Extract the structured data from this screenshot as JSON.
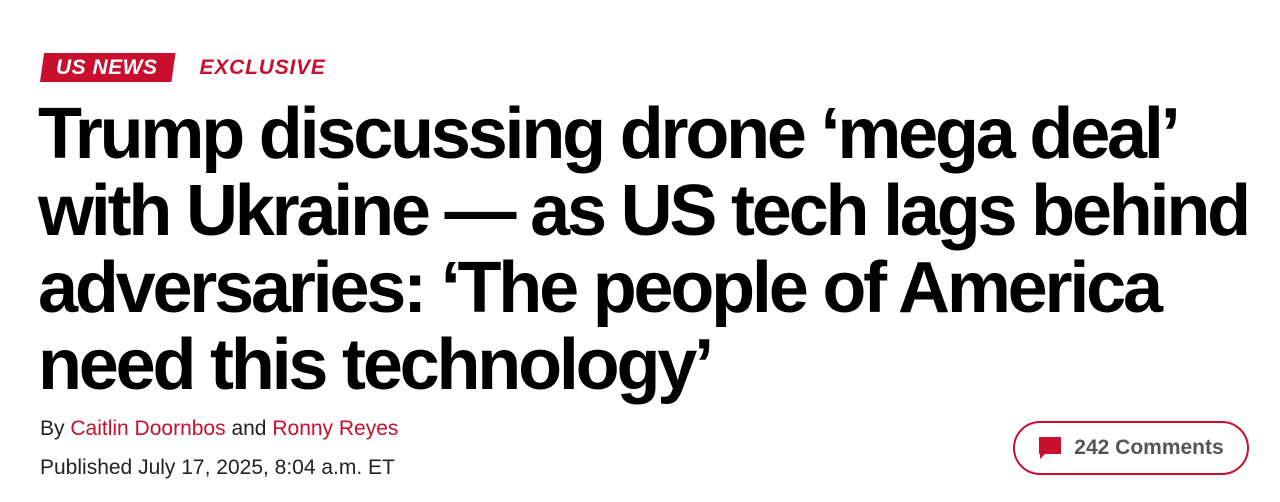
{
  "kicker": {
    "section": "US NEWS",
    "label": "EXCLUSIVE"
  },
  "headline": {
    "lines": [
      "Trump discussing drone ‘mega deal’",
      "with Ukraine — as US tech lags behind",
      "adversaries: ‘The people of America",
      "need this technology’"
    ]
  },
  "byline": {
    "prefix": "By",
    "author1": "Caitlin Doornbos",
    "conjunction": "and",
    "author2": "Ronny Reyes"
  },
  "published": "Published July 17, 2025, 8:04 a.m. ET",
  "comments": {
    "label": "242 Comments",
    "icon": "comment-bubble-icon"
  },
  "colors": {
    "accent": "#c8102e",
    "text": "#000000",
    "comment_text": "#555555"
  }
}
